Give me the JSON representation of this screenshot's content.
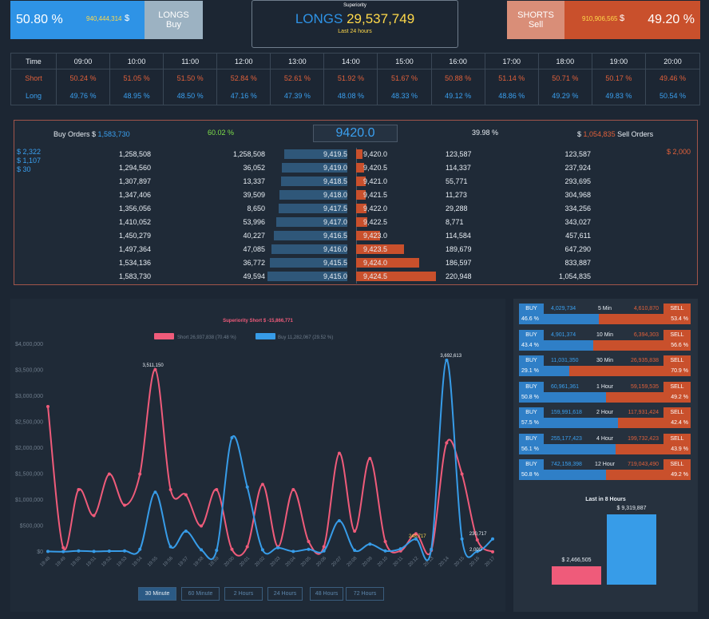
{
  "long": {
    "percent": "50.80 %",
    "amount": "940,444,314",
    "currency": "$",
    "label1": "LONGS",
    "label2": "Buy"
  },
  "short": {
    "percent": "49.20 %",
    "amount": "910,906,565",
    "currency": "$",
    "label1": "SHORTS",
    "label2": "Sell"
  },
  "superiority": {
    "title": "Superiority",
    "direction": "LONGS",
    "value": "29,537,749",
    "subtitle": "Last 24 hours"
  },
  "time_table": {
    "headers": [
      "Time",
      "09:00",
      "10:00",
      "11:00",
      "12:00",
      "13:00",
      "14:00",
      "15:00",
      "16:00",
      "17:00",
      "18:00",
      "19:00",
      "20:00"
    ],
    "short_label": "Short",
    "long_label": "Long",
    "short": [
      "50.24 %",
      "51.05 %",
      "51.50 %",
      "52.84 %",
      "52.61 %",
      "51.92 %",
      "51.67 %",
      "50.88 %",
      "51.14 %",
      "50.71 %",
      "50.17 %",
      "49.46 %"
    ],
    "long": [
      "49.76 %",
      "48.95 %",
      "48.50 %",
      "47.16 %",
      "47.39 %",
      "48.08 %",
      "48.33 %",
      "49.12 %",
      "48.86 %",
      "49.29 %",
      "49.83 %",
      "50.54 %"
    ]
  },
  "orderbook": {
    "buy_title": "Buy Orders $",
    "buy_total": "1,583,730",
    "buy_percent": "60.02 %",
    "price": "9420.0",
    "sell_percent": "39.98 %",
    "sell_currency": "$",
    "sell_total": "1,054,835",
    "sell_title": "Sell Orders",
    "left_side": [
      "$ 2,322",
      "$ 1,107",
      "$ 30"
    ],
    "right_side": "$ 2,000",
    "rows": [
      {
        "cum_buy": "1,258,508",
        "buy_size": "1,258,508",
        "buy_price": "9,419.5",
        "buy_frac": 0.79,
        "sell_price": "9,420.0",
        "sell_frac": 0.08,
        "sell_size": "123,587",
        "cum_sell": "123,587"
      },
      {
        "cum_buy": "1,294,560",
        "buy_size": "36,052",
        "buy_price": "9,419.0",
        "buy_frac": 0.82,
        "sell_price": "9,420.5",
        "sell_frac": 0.1,
        "sell_size": "114,337",
        "cum_sell": "237,924"
      },
      {
        "cum_buy": "1,307,897",
        "buy_size": "13,337",
        "buy_price": "9,418.5",
        "buy_frac": 0.83,
        "sell_price": "9,421.0",
        "sell_frac": 0.12,
        "sell_size": "55,771",
        "cum_sell": "293,695"
      },
      {
        "cum_buy": "1,347,406",
        "buy_size": "39,509",
        "buy_price": "9,418.0",
        "buy_frac": 0.85,
        "sell_price": "9,421.5",
        "sell_frac": 0.12,
        "sell_size": "11,273",
        "cum_sell": "304,968"
      },
      {
        "cum_buy": "1,356,056",
        "buy_size": "8,650",
        "buy_price": "9,417.5",
        "buy_frac": 0.86,
        "sell_price": "9,422.0",
        "sell_frac": 0.13,
        "sell_size": "29,288",
        "cum_sell": "334,256"
      },
      {
        "cum_buy": "1,410,052",
        "buy_size": "53,996",
        "buy_price": "9,417.0",
        "buy_frac": 0.89,
        "sell_price": "9,422.5",
        "sell_frac": 0.14,
        "sell_size": "8,771",
        "cum_sell": "343,027"
      },
      {
        "cum_buy": "1,450,279",
        "buy_size": "40,227",
        "buy_price": "9,416.5",
        "buy_frac": 0.92,
        "sell_price": "9,423.0",
        "sell_frac": 0.3,
        "sell_size": "114,584",
        "cum_sell": "457,611"
      },
      {
        "cum_buy": "1,497,364",
        "buy_size": "47,085",
        "buy_price": "9,416.0",
        "buy_frac": 0.95,
        "sell_price": "9,423.5",
        "sell_frac": 0.6,
        "sell_size": "189,679",
        "cum_sell": "647,290"
      },
      {
        "cum_buy": "1,534,136",
        "buy_size": "36,772",
        "buy_price": "9,415.5",
        "buy_frac": 0.97,
        "sell_price": "9,424.0",
        "sell_frac": 0.79,
        "sell_size": "186,597",
        "cum_sell": "833,887"
      },
      {
        "cum_buy": "1,583,730",
        "buy_size": "49,594",
        "buy_price": "9,415.0",
        "buy_frac": 1.0,
        "sell_price": "9,424.5",
        "sell_frac": 1.0,
        "sell_size": "220,948",
        "cum_sell": "1,054,835"
      }
    ]
  },
  "chart_data": {
    "type": "line",
    "title": "Superiority  Short $ -15,866,771",
    "legend": [
      "Short 26,937,838 (70.48 %)",
      "Buy 11,282,067 (29.52 %)"
    ],
    "x": [
      "19:48",
      "19:49",
      "19:50",
      "19:51",
      "19:52",
      "19:53",
      "19:54",
      "19:55",
      "19:56",
      "19:57",
      "19:58",
      "19:59",
      "20:00",
      "20:01",
      "20:02",
      "20:03",
      "20:04",
      "20:05",
      "20:06",
      "20:07",
      "20:08",
      "20:09",
      "20:10",
      "20:11",
      "20:12",
      "20:13",
      "20:14",
      "20:15",
      "20:16",
      "20:17"
    ],
    "ylim": [
      0,
      4000000
    ],
    "yticks": [
      "$0",
      "$500,000",
      "$1,000,000",
      "$1,500,000",
      "$2,000,000",
      "$2,500,000",
      "$3,000,000",
      "$3,500,000",
      "$4,000,000"
    ],
    "series": [
      {
        "name": "Short",
        "color": "#ef5b7a",
        "values": [
          2800000,
          80000,
          1200000,
          700000,
          1500000,
          900000,
          1500000,
          3511150,
          1200000,
          1100000,
          500000,
          1200000,
          50000,
          100000,
          1300000,
          100000,
          1200000,
          200000,
          100000,
          1900000,
          400000,
          1800000,
          200000,
          20000,
          350000,
          30000,
          2100000,
          1500000,
          230717,
          2000
        ]
      },
      {
        "name": "Buy",
        "color": "#379ce8",
        "values": [
          10000,
          5000,
          20000,
          10000,
          15000,
          20000,
          50000,
          1150000,
          100000,
          400000,
          40000,
          30000,
          2200000,
          1250000,
          40000,
          80000,
          10000,
          50000,
          20000,
          600000,
          30000,
          150000,
          20000,
          60000,
          248717,
          50000,
          3692613,
          250000,
          10000,
          250000
        ]
      }
    ],
    "annotations": [
      "3,511,150",
      "3,692,613",
      "248,717",
      "230,717",
      "2,000"
    ]
  },
  "range_buttons": [
    "30 Minute",
    "60 Minute",
    "2 Hours",
    "24 Hours",
    "48 Hours",
    "72 Hours"
  ],
  "windows": [
    {
      "buy_label": "BUY",
      "buy": "4,029,734",
      "label": "5 Min",
      "sell": "4,610,870",
      "sell_label": "SELL",
      "buy_pct": "46.6 %",
      "sell_pct": "53.4 %",
      "buy_frac": 0.466
    },
    {
      "buy_label": "BUY",
      "buy": "4,901,374",
      "label": "10 Min",
      "sell": "6,394,303",
      "sell_label": "SELL",
      "buy_pct": "43.4 %",
      "sell_pct": "56.6 %",
      "buy_frac": 0.434
    },
    {
      "buy_label": "BUY",
      "buy": "11,031,350",
      "label": "30 Min",
      "sell": "26,935,838",
      "sell_label": "SELL",
      "buy_pct": "29.1 %",
      "sell_pct": "70.9 %",
      "buy_frac": 0.291
    },
    {
      "buy_label": "BUY",
      "buy": "60,961,361",
      "label": "1 Hour",
      "sell": "59,159,535",
      "sell_label": "SELL",
      "buy_pct": "50.8 %",
      "sell_pct": "49.2 %",
      "buy_frac": 0.508
    },
    {
      "buy_label": "BUY",
      "buy": "159,991,618",
      "label": "2 Hour",
      "sell": "117,931,424",
      "sell_label": "SELL",
      "buy_pct": "57.5 %",
      "sell_pct": "42.4 %",
      "buy_frac": 0.575
    },
    {
      "buy_label": "BUY",
      "buy": "255,177,423",
      "label": "4 Hour",
      "sell": "199,732,423",
      "sell_label": "SELL",
      "buy_pct": "56.1 %",
      "sell_pct": "43.9 %",
      "buy_frac": 0.561
    },
    {
      "buy_label": "BUY",
      "buy": "742,158,398",
      "label": "12 Hour",
      "sell": "719,043,490",
      "sell_label": "SELL",
      "buy_pct": "50.8 %",
      "sell_pct": "49.2 %",
      "buy_frac": 0.508
    }
  ],
  "last8": {
    "title": "Last in 8 Hours",
    "short": "$ 2,466,505",
    "buy": "$ 9,319,887",
    "short_value": 2466505,
    "buy_value": 9319887
  }
}
